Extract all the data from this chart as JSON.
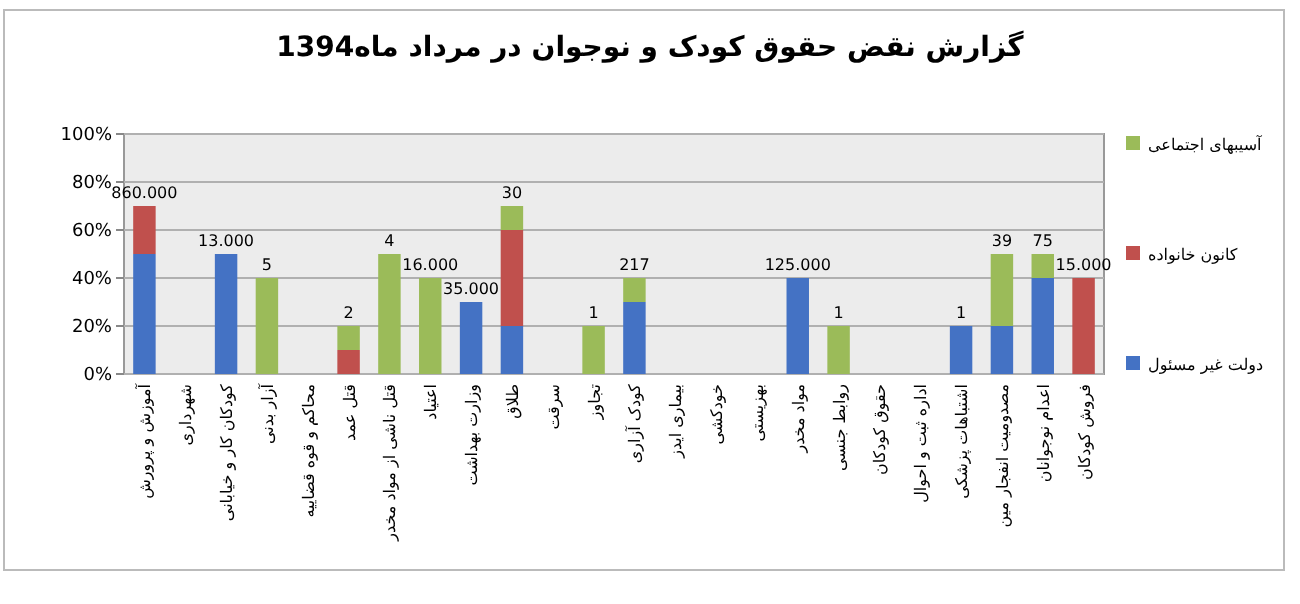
{
  "chart_data": {
    "type": "bar",
    "stacked": true,
    "title": "گزارش نقض حقوق کودک و نوجوان در مرداد ماه1394",
    "categories": [
      "آموزش و پرورش",
      "شهرداری",
      "کودکان کار و خیابانی",
      "آزار بدنی",
      "محاکم و قوه قضاییه",
      "قتل عمد",
      "قتل ناشی از مواد مخدر",
      "اعتیاد",
      "وزارت بهداشت",
      "طلاق",
      "سرقت",
      "تجاوز",
      "کودک آزاری",
      "بیماری ایدز",
      "خودکشی",
      "بهزیستی",
      "مواد مخدر",
      "روابط جنسی",
      "حقوق کودکان",
      "اداره ثبت و احوال",
      "اشتباهات پزشکی",
      "مصدومیت انفجار مین",
      "اعدام نوجوانان",
      "فروش کودکان"
    ],
    "series": [
      {
        "name": "دولت غیر مسئول",
        "color": "#4472c4",
        "values": [
          50,
          0,
          50,
          0,
          0,
          0,
          0,
          0,
          30,
          20,
          0,
          0,
          30,
          0,
          0,
          0,
          40,
          0,
          0,
          0,
          20,
          20,
          40,
          0
        ]
      },
      {
        "name": "کانون خانواده",
        "color": "#c0504d",
        "values": [
          20,
          0,
          0,
          0,
          0,
          10,
          0,
          0,
          0,
          40,
          0,
          0,
          0,
          0,
          0,
          0,
          0,
          0,
          0,
          0,
          0,
          0,
          0,
          40
        ]
      },
      {
        "name": "آسیبهای اجتماعی",
        "color": "#9bbb59",
        "values": [
          0,
          0,
          0,
          40,
          0,
          10,
          50,
          40,
          0,
          10,
          0,
          20,
          10,
          0,
          0,
          0,
          0,
          20,
          0,
          0,
          0,
          30,
          10,
          0
        ]
      }
    ],
    "ylim": [
      0,
      100
    ],
    "yticks": [
      {
        "value": 0,
        "label": "0%"
      },
      {
        "value": 20,
        "label": "20%"
      },
      {
        "value": 40,
        "label": "40%"
      },
      {
        "value": 60,
        "label": "60%"
      },
      {
        "value": 80,
        "label": "80%"
      },
      {
        "value": 100,
        "label": "100%"
      }
    ],
    "grid": "y",
    "legend": "right",
    "annotations": [
      {
        "text": "860.000",
        "x": "آموزش و پرورش",
        "y": 70
      },
      {
        "text": "13.000",
        "x": "کودکان کار و خیابانی",
        "y": 50
      },
      {
        "text": "5",
        "x": "آزار بدنی",
        "y": 40
      },
      {
        "text": "2",
        "x": "قتل عمد",
        "y": 20
      },
      {
        "text": "4",
        "x": "قتل ناشی از مواد مخدر",
        "y": 50
      },
      {
        "text": "16.000",
        "x": "اعتیاد",
        "y": 40
      },
      {
        "text": "35.000",
        "x": "وزارت بهداشت",
        "y": 30
      },
      {
        "text": "30",
        "x": "طلاق",
        "y": 70
      },
      {
        "text": "1",
        "x": "تجاوز",
        "y": 20
      },
      {
        "text": "217",
        "x": "کودک آزاری",
        "y": 40
      },
      {
        "text": "125.000",
        "x": "مواد مخدر",
        "y": 40
      },
      {
        "text": "1",
        "x": "روابط جنسی",
        "y": 20
      },
      {
        "text": "1",
        "x": "اشتباهات پزشکی",
        "y": 20
      },
      {
        "text": "39",
        "x": "مصدومیت انفجار مین",
        "y": 50
      },
      {
        "text": "75",
        "x": "اعدام نوجوانان",
        "y": 50
      },
      {
        "text": "15.000",
        "x": "فروش کودکان",
        "y": 40
      }
    ]
  }
}
